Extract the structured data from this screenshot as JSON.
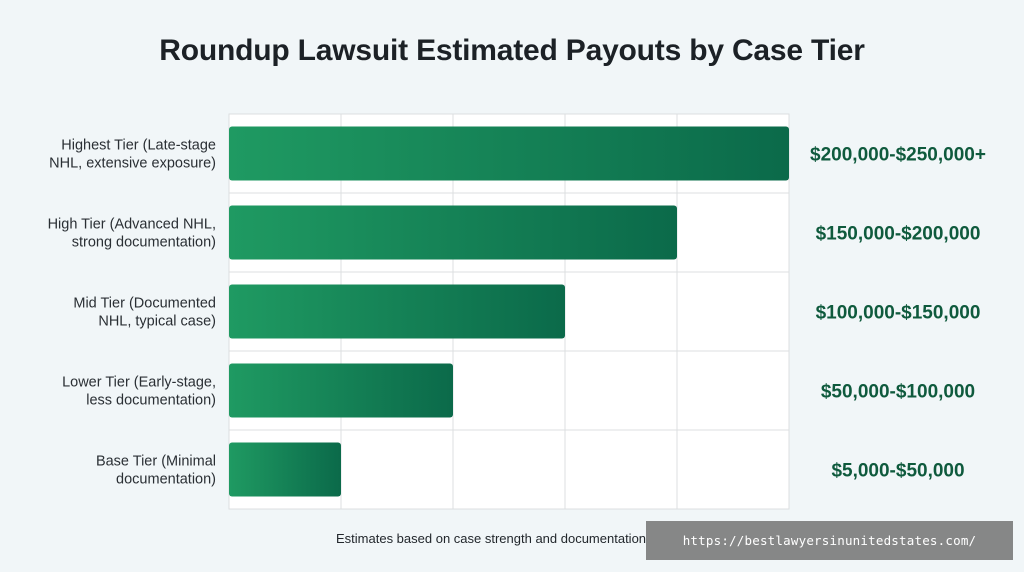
{
  "title": "Roundup Lawsuit Estimated Payouts by Case Tier",
  "footnote": "Estimates based on case strength and documentation",
  "watermark": "https://bestlawyersinunitedstates.com/",
  "colors": {
    "bar_start": "#1f9a62",
    "bar_end": "#0b6a4a",
    "value_label": "#0f5a3d",
    "grid": "#dcdfe1",
    "plot_bg": "#ffffff"
  },
  "chart_data": {
    "type": "bar",
    "orientation": "horizontal",
    "title": "Roundup Lawsuit Estimated Payouts by Case Tier",
    "categories": [
      [
        "Highest Tier (Late-stage",
        "NHL, extensive exposure)"
      ],
      [
        "High Tier (Advanced NHL,",
        "strong documentation)"
      ],
      [
        "Mid Tier (Documented",
        "NHL, typical case)"
      ],
      [
        "Lower Tier (Early-stage,",
        "less documentation)"
      ],
      [
        "Base Tier (Minimal",
        "documentation)"
      ]
    ],
    "values": [
      250000,
      200000,
      150000,
      100000,
      50000
    ],
    "value_labels": [
      "$200,000-$250,000+",
      "$150,000-$200,000",
      "$100,000-$150,000",
      "$50,000-$100,000",
      "$5,000-$50,000"
    ],
    "xlim": [
      0,
      250000
    ],
    "grid": true,
    "xlabel": "",
    "ylabel": ""
  }
}
